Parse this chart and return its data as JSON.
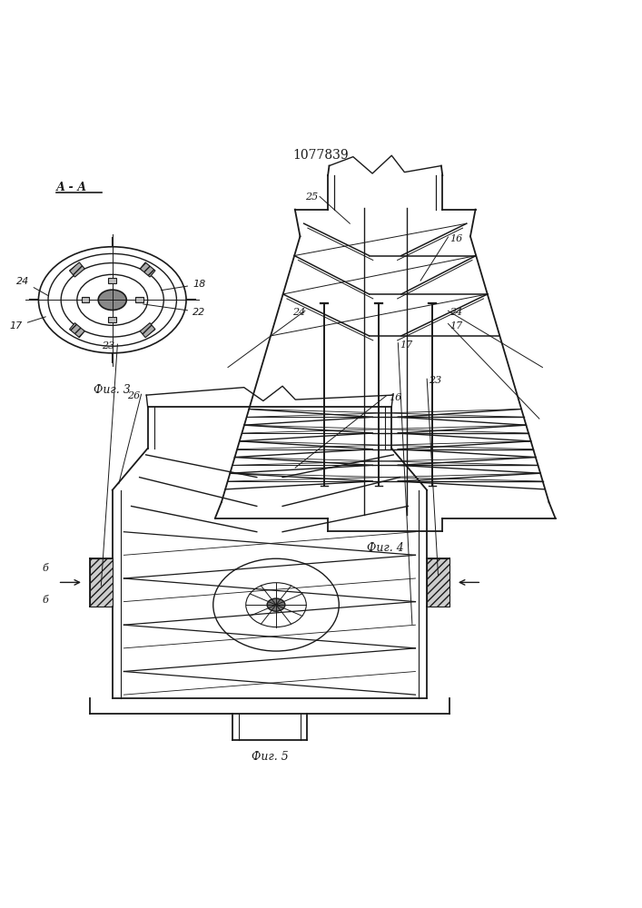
{
  "title": "1077839",
  "background": "#ffffff",
  "line_color": "#1a1a1a",
  "line_width": 1.0,
  "fig3_label": "Фиг. 3",
  "fig4_label": "Фиг. 4",
  "fig5_label": "Фиг. 5",
  "section_label": "А - А"
}
